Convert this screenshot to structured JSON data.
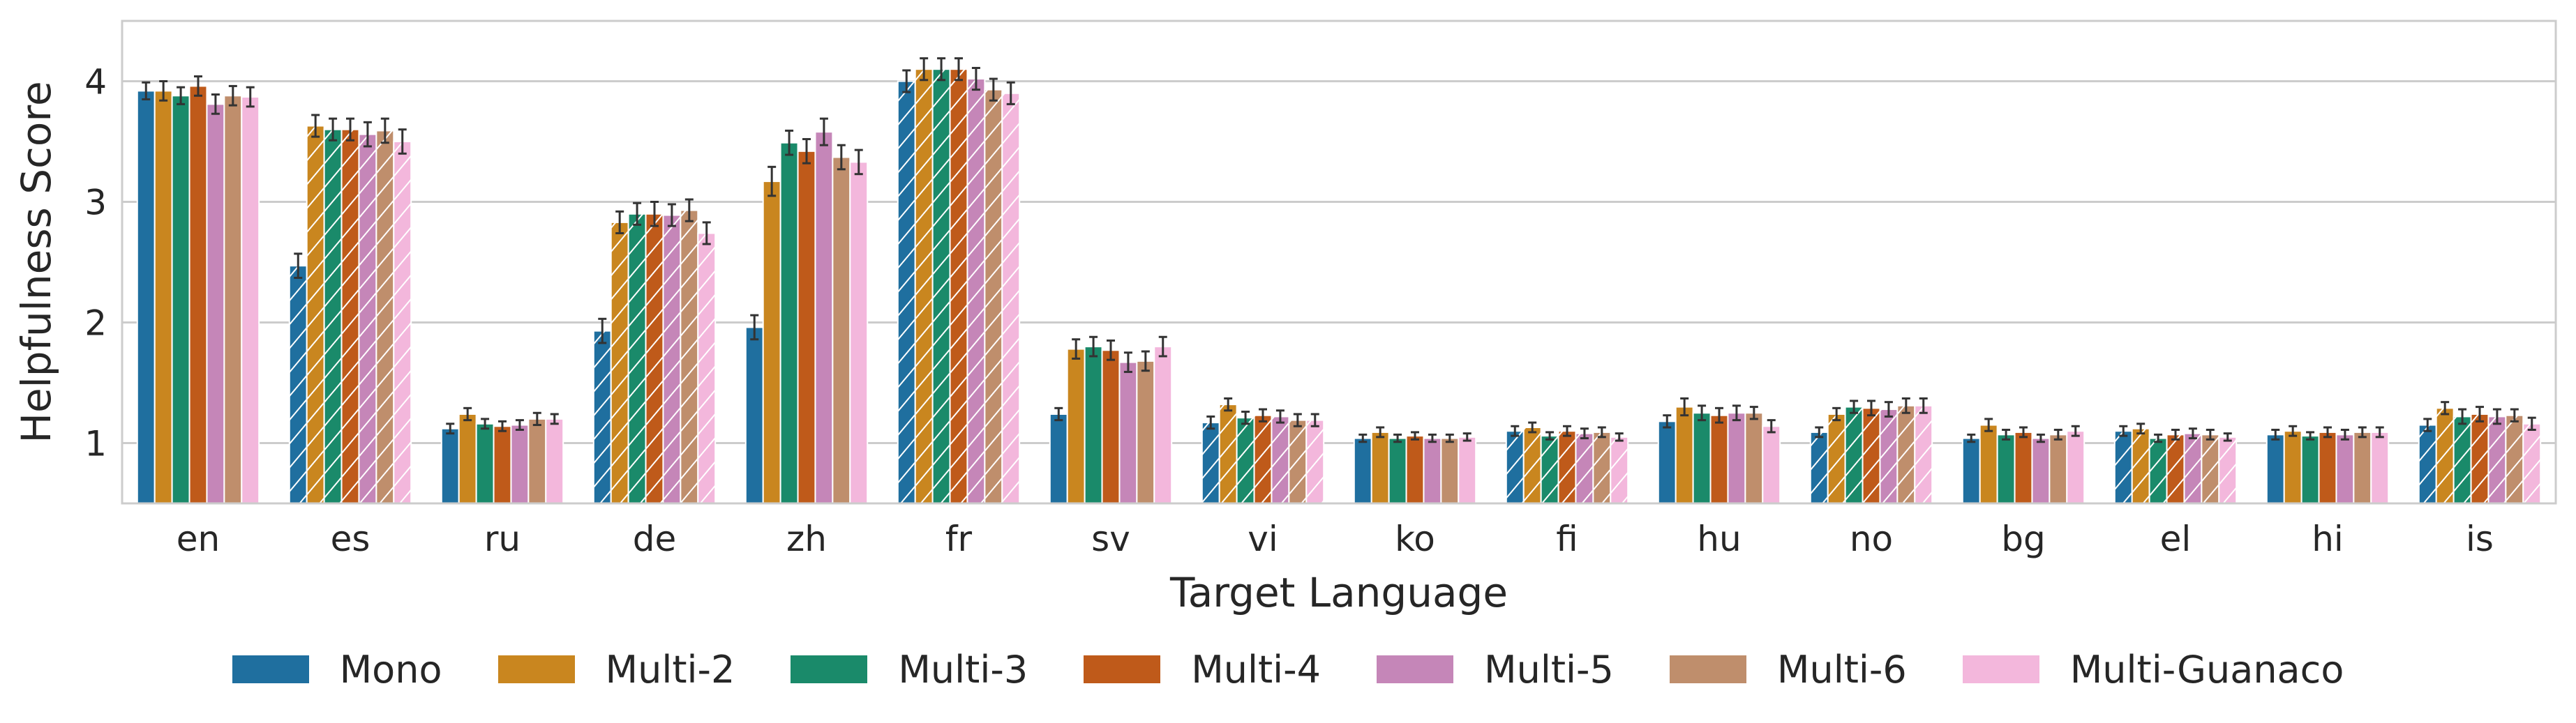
{
  "chart_data": {
    "type": "bar",
    "xlabel": "Target Language",
    "ylabel": "Helpfulness Score",
    "ylim": [
      0.5,
      4.5
    ],
    "yticks": [
      1,
      2,
      3,
      4
    ],
    "grid": "horizontal",
    "legend_position": "bottom",
    "categories": [
      "en",
      "es",
      "ru",
      "de",
      "zh",
      "fr",
      "sv",
      "vi",
      "ko",
      "fi",
      "hu",
      "no",
      "bg",
      "el",
      "hi",
      "is"
    ],
    "series": [
      {
        "name": "Mono",
        "color": "#1f6f9f",
        "values": [
          3.92,
          2.47,
          1.12,
          1.93,
          1.96,
          4.0,
          1.24,
          1.17,
          1.04,
          1.1,
          1.18,
          1.09,
          1.04,
          1.1,
          1.07,
          1.15
        ],
        "errors": [
          0.07,
          0.1,
          0.04,
          0.1,
          0.1,
          0.09,
          0.05,
          0.05,
          0.03,
          0.04,
          0.05,
          0.04,
          0.03,
          0.04,
          0.04,
          0.05
        ]
      },
      {
        "name": "Multi-2",
        "color": "#c9861f",
        "values": [
          3.92,
          3.63,
          1.24,
          2.83,
          3.17,
          4.1,
          1.78,
          1.32,
          1.09,
          1.13,
          1.3,
          1.24,
          1.15,
          1.12,
          1.1,
          1.29
        ],
        "errors": [
          0.08,
          0.09,
          0.05,
          0.09,
          0.12,
          0.09,
          0.08,
          0.05,
          0.04,
          0.04,
          0.07,
          0.05,
          0.05,
          0.04,
          0.04,
          0.05
        ]
      },
      {
        "name": "Multi-3",
        "color": "#1a8a6a",
        "values": [
          3.88,
          3.6,
          1.16,
          2.9,
          3.49,
          4.1,
          1.8,
          1.21,
          1.04,
          1.06,
          1.25,
          1.3,
          1.07,
          1.04,
          1.06,
          1.22
        ],
        "errors": [
          0.07,
          0.09,
          0.04,
          0.09,
          0.1,
          0.09,
          0.08,
          0.05,
          0.03,
          0.03,
          0.06,
          0.05,
          0.04,
          0.03,
          0.03,
          0.06
        ]
      },
      {
        "name": "Multi-4",
        "color": "#bf5a1a",
        "values": [
          3.96,
          3.6,
          1.14,
          2.9,
          3.42,
          4.1,
          1.77,
          1.23,
          1.06,
          1.1,
          1.23,
          1.29,
          1.09,
          1.07,
          1.09,
          1.24
        ],
        "errors": [
          0.08,
          0.09,
          0.04,
          0.1,
          0.1,
          0.09,
          0.08,
          0.05,
          0.03,
          0.04,
          0.06,
          0.06,
          0.04,
          0.04,
          0.04,
          0.06
        ]
      },
      {
        "name": "Multi-5",
        "color": "#c586b8",
        "values": [
          3.81,
          3.56,
          1.15,
          2.89,
          3.58,
          4.02,
          1.67,
          1.22,
          1.04,
          1.08,
          1.25,
          1.28,
          1.04,
          1.08,
          1.07,
          1.22
        ],
        "errors": [
          0.08,
          0.1,
          0.04,
          0.09,
          0.11,
          0.09,
          0.08,
          0.05,
          0.03,
          0.04,
          0.06,
          0.06,
          0.03,
          0.04,
          0.04,
          0.06
        ]
      },
      {
        "name": "Multi-6",
        "color": "#bf8e6c",
        "values": [
          3.88,
          3.59,
          1.2,
          2.93,
          3.37,
          3.93,
          1.68,
          1.19,
          1.04,
          1.09,
          1.25,
          1.31,
          1.07,
          1.07,
          1.09,
          1.23
        ],
        "errors": [
          0.08,
          0.1,
          0.05,
          0.09,
          0.1,
          0.09,
          0.08,
          0.05,
          0.03,
          0.04,
          0.05,
          0.06,
          0.04,
          0.04,
          0.04,
          0.05
        ]
      },
      {
        "name": "Multi-Guanaco",
        "color": "#f3b7dc",
        "values": [
          3.87,
          3.5,
          1.2,
          2.74,
          3.33,
          3.9,
          1.8,
          1.19,
          1.05,
          1.05,
          1.14,
          1.31,
          1.1,
          1.05,
          1.09,
          1.16
        ],
        "errors": [
          0.08,
          0.1,
          0.04,
          0.09,
          0.1,
          0.09,
          0.08,
          0.05,
          0.03,
          0.03,
          0.05,
          0.06,
          0.04,
          0.03,
          0.04,
          0.05
        ]
      }
    ]
  }
}
